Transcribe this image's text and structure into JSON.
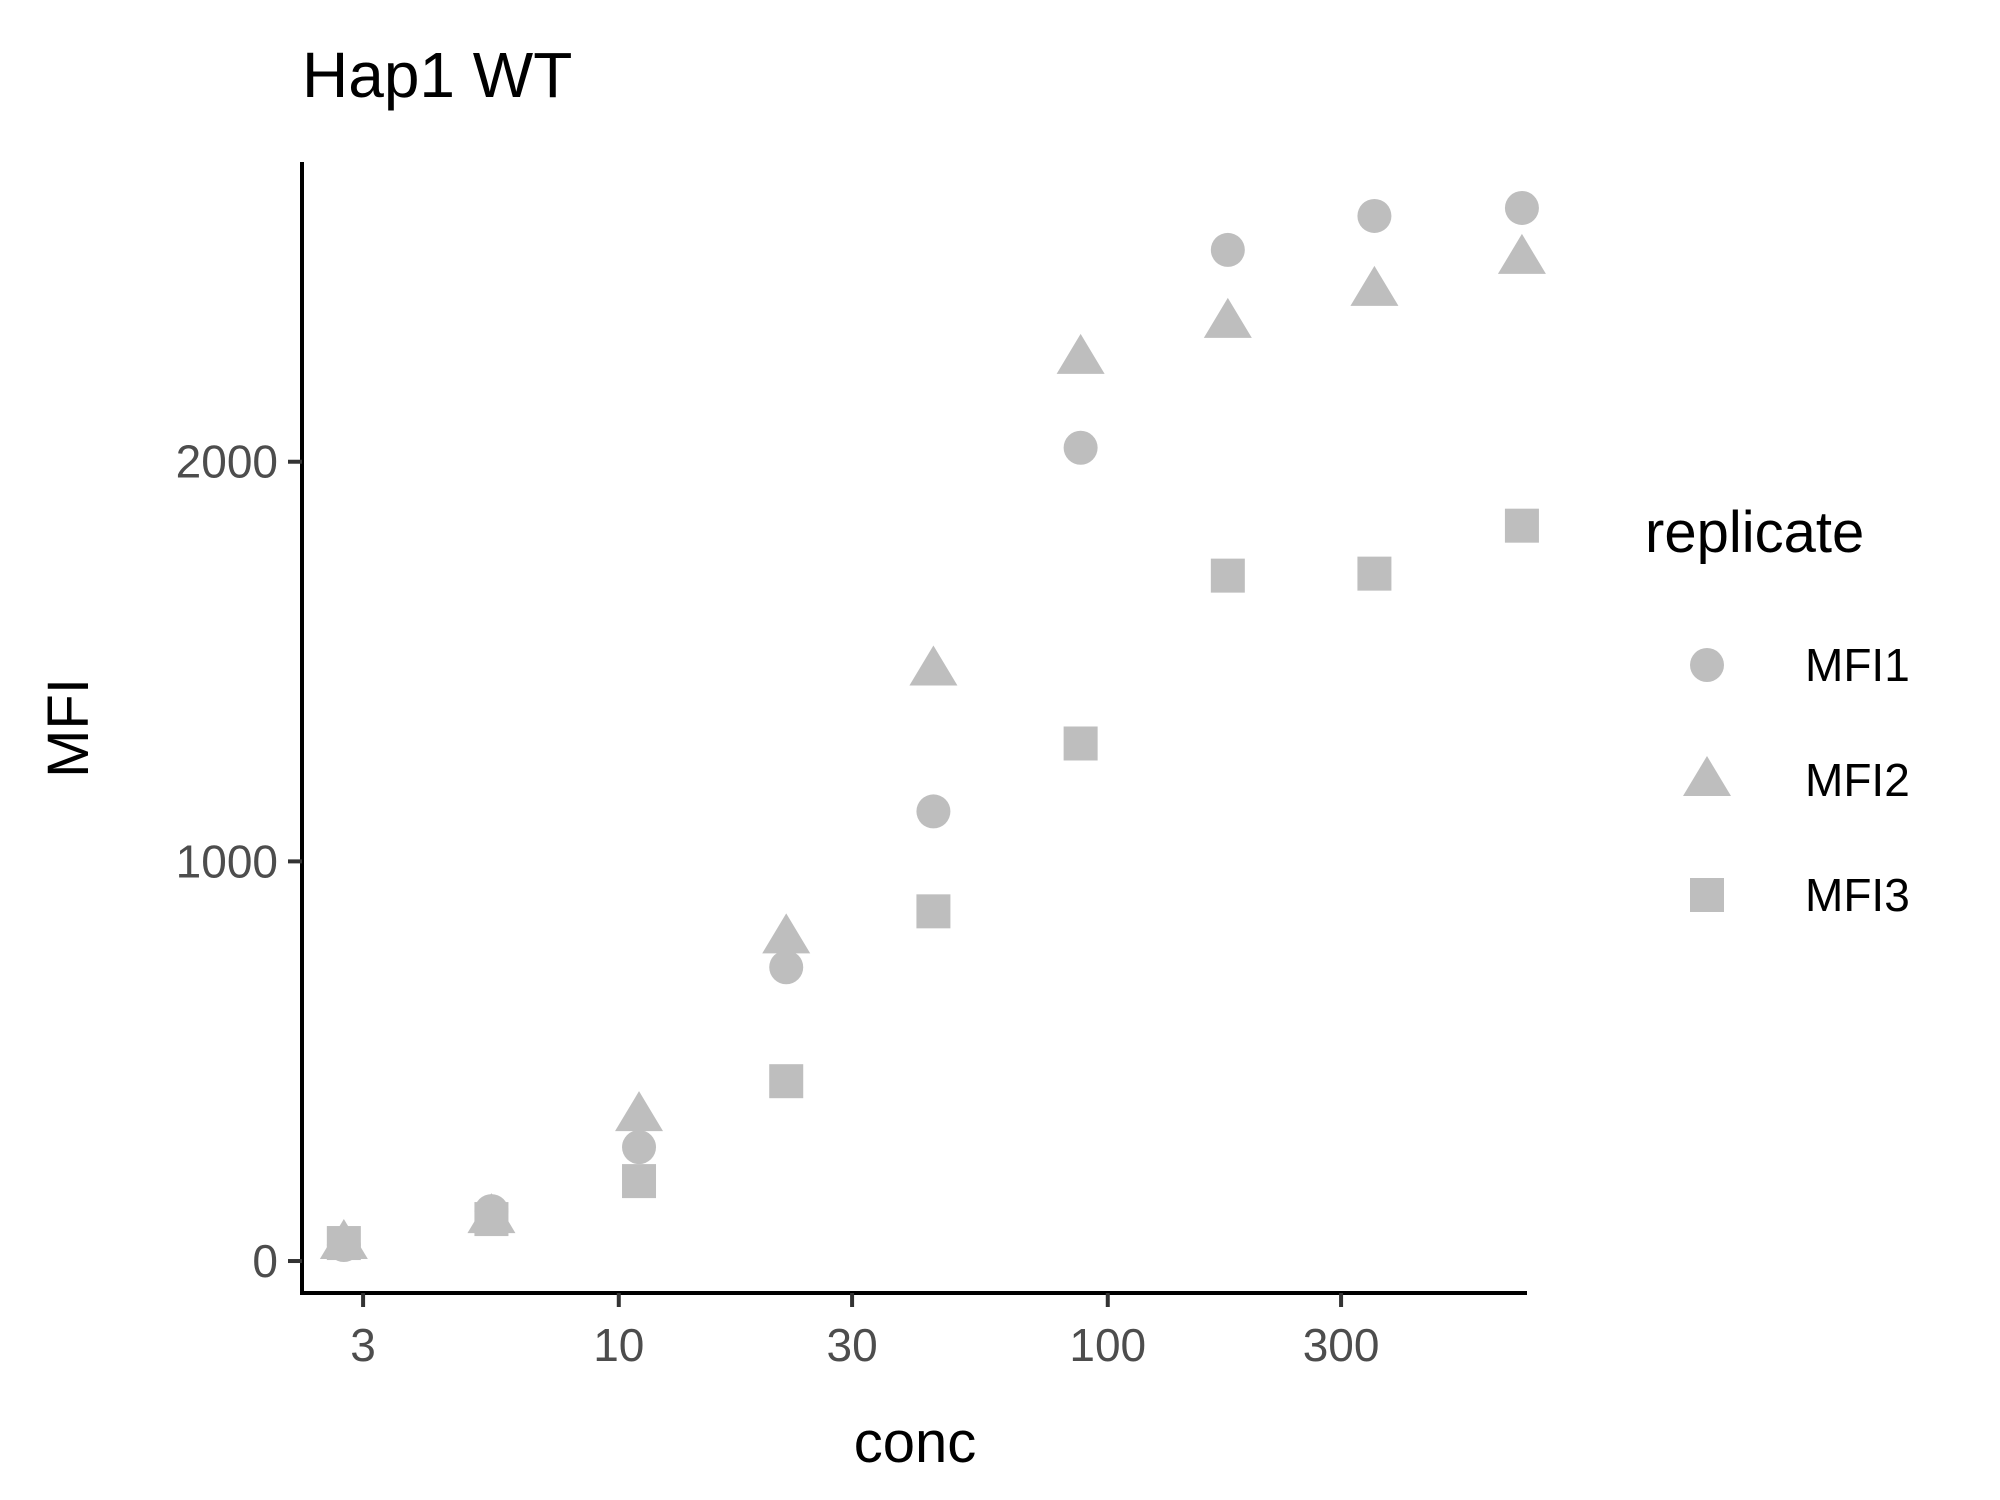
{
  "chart_data": {
    "type": "scatter",
    "title": "Hap1 WT",
    "xlabel": "conc",
    "ylabel": "MFI",
    "x_scale": "log10",
    "xlim": [
      2.25,
      720
    ],
    "ylim": [
      -80,
      2750
    ],
    "x_ticks": [
      3,
      10,
      30,
      100,
      300
    ],
    "x_tick_labels": [
      "3",
      "10",
      "30",
      "100",
      "300"
    ],
    "y_ticks": [
      0,
      1000,
      2000
    ],
    "y_tick_labels": [
      "0",
      "1000",
      "2000"
    ],
    "grid": false,
    "legend": {
      "title": "replicate",
      "position": "right"
    },
    "point_color": "#bebebe",
    "x": [
      2.74,
      5.49,
      11,
      22,
      44,
      88,
      176,
      351,
      703
    ],
    "series": [
      {
        "name": "MFI1",
        "shape": "circle",
        "values": [
          40,
          125,
          285,
          735,
          1125,
          2035,
          2530,
          2615,
          2635
        ]
      },
      {
        "name": "MFI2",
        "shape": "triangle",
        "values": [
          45,
          110,
          365,
          810,
          1480,
          2260,
          2350,
          2430,
          2510
        ]
      },
      {
        "name": "MFI3",
        "shape": "square",
        "values": [
          45,
          105,
          200,
          450,
          875,
          1295,
          1715,
          1720,
          1840
        ]
      }
    ]
  }
}
